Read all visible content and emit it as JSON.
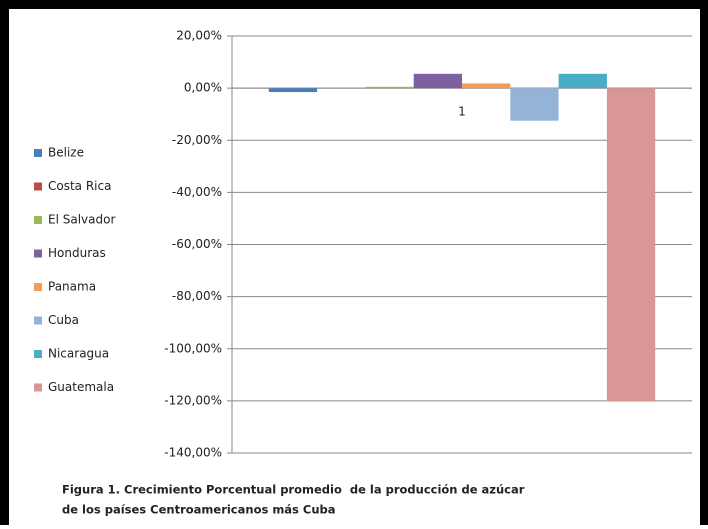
{
  "chart_data": {
    "type": "bar",
    "categories": [
      "1"
    ],
    "series": [
      {
        "name": "Belize",
        "color": "#4a7ebb",
        "values": [
          -1.5
        ]
      },
      {
        "name": "Costa Rica",
        "color": "#be4b48",
        "values": [
          0
        ]
      },
      {
        "name": "El Salvador",
        "color": "#98b954",
        "values": [
          0.5
        ]
      },
      {
        "name": "Honduras",
        "color": "#7d60a0",
        "values": [
          5.5
        ]
      },
      {
        "name": "Panama",
        "color": "#f59d56",
        "values": [
          1.8
        ]
      },
      {
        "name": "Cuba",
        "color": "#95b3d7",
        "values": [
          -12.5
        ]
      },
      {
        "name": "Nicaragua",
        "color": "#4bacc6",
        "values": [
          5.5
        ]
      },
      {
        "name": "Guatemala",
        "color": "#d99694",
        "values": [
          -120
        ]
      }
    ],
    "ylim": [
      -140,
      20
    ],
    "yticks": [
      {
        "value": 20,
        "label": "20,00%"
      },
      {
        "value": 0,
        "label": "0,00%"
      },
      {
        "value": -20,
        "label": "-20,00%"
      },
      {
        "value": -40,
        "label": "-40,00%"
      },
      {
        "value": -60,
        "label": "-60,00%"
      },
      {
        "value": -80,
        "label": "-80,00%"
      },
      {
        "value": -100,
        "label": "-100,00%"
      },
      {
        "value": -120,
        "label": "-120,00%"
      },
      {
        "value": -140,
        "label": "-140,00%"
      }
    ],
    "grid": true,
    "legend": "left",
    "caption": [
      "Figura 1. Crecimiento Porcentual promedio  de la producción de azúcar",
      "de los países Centroamericanos más Cuba"
    ]
  }
}
